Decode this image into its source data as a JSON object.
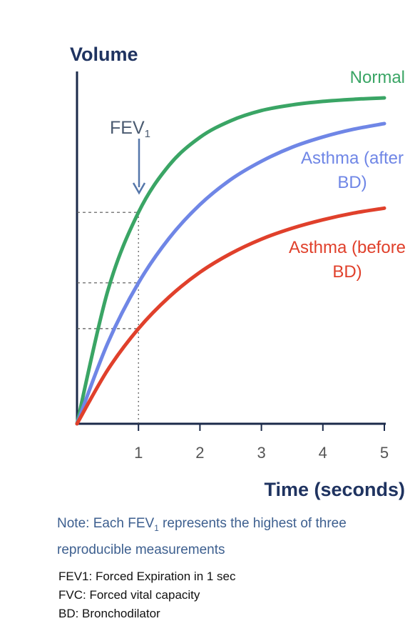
{
  "chart_data": {
    "type": "line",
    "y_label": "Volume",
    "x_label": "Time (seconds)",
    "x": [
      0,
      0.5,
      1,
      1.5,
      2,
      2.5,
      3,
      3.5,
      4,
      4.5,
      5
    ],
    "xlim": [
      0,
      5
    ],
    "xticks": [
      1,
      2,
      3,
      4,
      5
    ],
    "ylim": [
      0,
      100
    ],
    "series": [
      {
        "name": "Normal",
        "color": "#3aa565",
        "values": [
          0,
          37.7,
          60,
          73.4,
          81.3,
          86,
          88.9,
          90.5,
          91.5,
          92.1,
          92.5
        ]
      },
      {
        "name": "Asthma (after BD)",
        "color": "#6f86e6",
        "values": [
          0,
          22.9,
          40,
          52.7,
          62.2,
          69.3,
          74.5,
          78.5,
          81.4,
          83.6,
          85.2
        ]
      },
      {
        "name": "Asthma (before BD)",
        "color": "#e0402b",
        "values": [
          0,
          15.3,
          27,
          36,
          43,
          48.3,
          52.4,
          55.5,
          57.9,
          59.8,
          61.2
        ]
      }
    ],
    "annotation": {
      "text": "FEV",
      "subscript": "1"
    },
    "note": [
      "Note:  Each FEV",
      "1",
      " represents the highest of three reproducible measurements"
    ],
    "footnotes": [
      "FEV1: Forced Expiration in 1 sec",
      "FVC: Forced vital capacity",
      "BD: Bronchodilator"
    ]
  }
}
